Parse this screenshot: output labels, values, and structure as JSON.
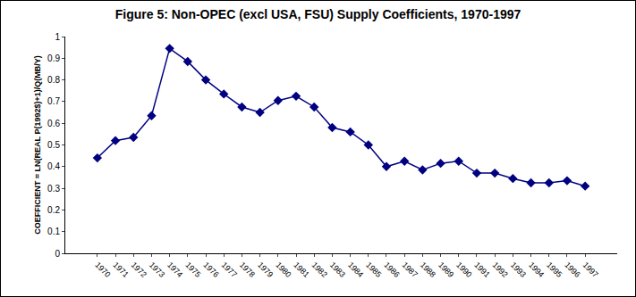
{
  "chart_data": {
    "type": "line",
    "title": "Figure 5: Non-OPEC (excl USA, FSU) Supply Coefficients, 1970-1997",
    "y_label": "COEFFICIENT = LN(REAL P(1992$)+1)/Q(MB/Y)",
    "categories": [
      "1970",
      "1971",
      "1972",
      "1973",
      "1974",
      "1975",
      "1976",
      "1977",
      "1978",
      "1979",
      "1980",
      "1981",
      "1982",
      "1983",
      "1984",
      "1985",
      "1986",
      "1987",
      "1988",
      "1989",
      "1990",
      "1991",
      "1992",
      "1993",
      "1994",
      "1995",
      "1996",
      "1997"
    ],
    "values": [
      0.44,
      0.52,
      0.535,
      0.635,
      0.945,
      0.885,
      0.8,
      0.735,
      0.675,
      0.65,
      0.705,
      0.725,
      0.675,
      0.58,
      0.56,
      0.5,
      0.4,
      0.425,
      0.385,
      0.415,
      0.425,
      0.37,
      0.37,
      0.345,
      0.325,
      0.325,
      0.335,
      0.31
    ],
    "color": "#000080",
    "marker": "diamond",
    "line_style": "solid",
    "ylim": [
      0,
      1
    ],
    "yticks": [
      0,
      0.1,
      0.2,
      0.3,
      0.4,
      0.5,
      0.6,
      0.7,
      0.8,
      0.9,
      1
    ],
    "grid": false
  }
}
